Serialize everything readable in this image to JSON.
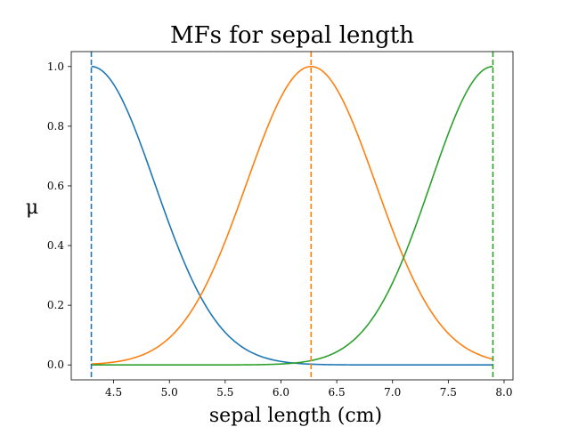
{
  "chart_data": {
    "type": "line",
    "title": "MFs for sepal length",
    "xlabel": "sepal length (cm)",
    "ylabel": "μ",
    "xlim": [
      4.12,
      8.08
    ],
    "ylim": [
      -0.05,
      1.05
    ],
    "xticks": [
      4.5,
      5.0,
      5.5,
      6.0,
      6.5,
      7.0,
      7.5,
      8.0
    ],
    "xtick_labels": [
      "4.5",
      "5.0",
      "5.5",
      "6.0",
      "6.5",
      "7.0",
      "7.5",
      "8.0"
    ],
    "yticks": [
      0.0,
      0.2,
      0.4,
      0.6,
      0.8,
      1.0
    ],
    "ytick_labels": [
      "0.0",
      "0.2",
      "0.4",
      "0.6",
      "0.8",
      "1.0"
    ],
    "grid": false,
    "x_domain": [
      4.3,
      7.9
    ],
    "series": [
      {
        "color": "#1f77b4",
        "kind": "gaussian-left",
        "center": 4.3,
        "sigma": 0.57,
        "vline": 4.3
      },
      {
        "color": "#ff7f0e",
        "kind": "gaussian",
        "center": 6.27,
        "sigma": 0.58,
        "vline": 6.27
      },
      {
        "color": "#2ca02c",
        "kind": "gaussian-right",
        "center": 7.9,
        "sigma": 0.56,
        "vline": 7.9
      }
    ]
  }
}
